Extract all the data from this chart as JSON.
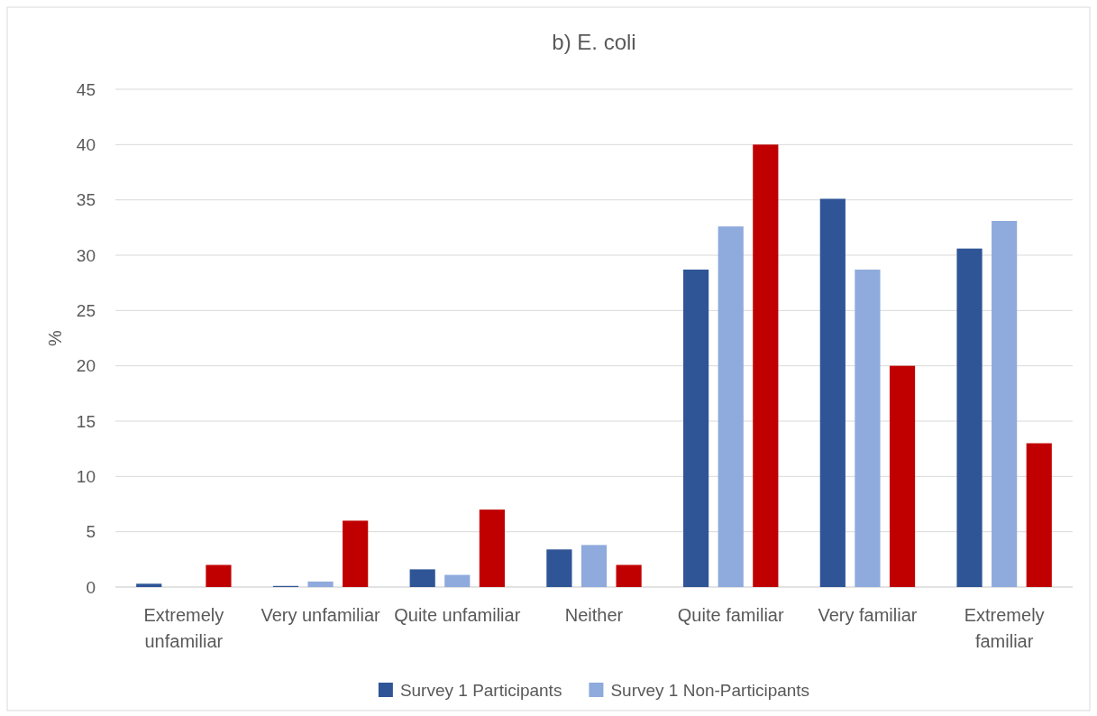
{
  "chart_data": {
    "type": "bar",
    "title": "b) E. coli",
    "ylabel": "%",
    "categories": [
      "Extremely unfamiliar",
      "Very unfamiliar",
      "Quite unfamiliar",
      "Neither",
      "Quite familiar",
      "Very familiar",
      "Extremely familiar"
    ],
    "series": [
      {
        "name": "Survey 1 Participants",
        "color": "#2f5597",
        "values": [
          0.3,
          0.1,
          1.6,
          3.4,
          28.7,
          35.1,
          30.6
        ]
      },
      {
        "name": "Survey 1 Non-Participants",
        "color": "#8faadc",
        "values": [
          0,
          0.5,
          1.1,
          3.8,
          32.6,
          28.7,
          33.1
        ]
      },
      {
        "color": "#c00000",
        "values": [
          2,
          6,
          7,
          2,
          40,
          20,
          13
        ]
      }
    ],
    "ylim": [
      0,
      45
    ],
    "yticks": [
      0,
      5,
      10,
      15,
      20,
      25,
      30,
      35,
      40,
      45
    ],
    "grid": "y",
    "legend": "bottom"
  }
}
